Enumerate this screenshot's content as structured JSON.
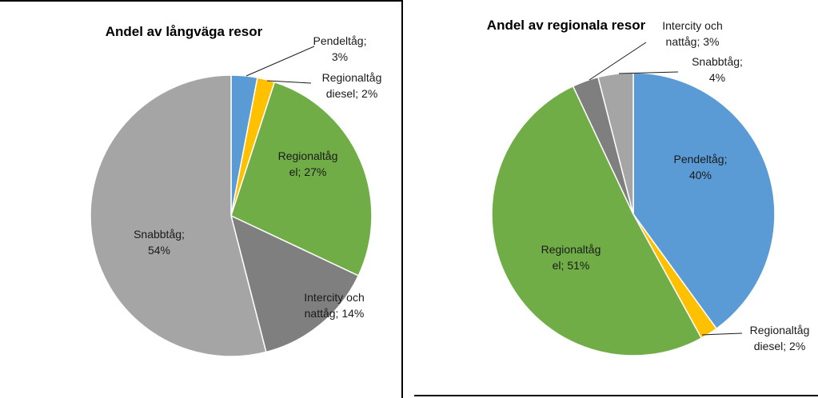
{
  "chart_data": [
    {
      "type": "pie",
      "title": "Andel  av långväga resor",
      "slices": [
        {
          "name": "Pendeltåg",
          "value": 3,
          "color": "#5b9bd5",
          "label_lines": [
            "Pendeltåg;",
            "3%"
          ]
        },
        {
          "name": "Regionaltåg diesel",
          "value": 2,
          "color": "#ffc000",
          "label_lines": [
            "Regionaltåg",
            "diesel; 2%"
          ]
        },
        {
          "name": "Regionaltåg el",
          "value": 27,
          "color": "#70ad47",
          "label_lines": [
            "Regionaltåg",
            "el; 27%"
          ]
        },
        {
          "name": "Intercity och nattåg",
          "value": 14,
          "color": "#7f7f7f",
          "label_lines": [
            "Intercity och",
            "nattåg; 14%"
          ]
        },
        {
          "name": "Snabbtåg",
          "value": 54,
          "color": "#a5a5a5",
          "label_lines": [
            "Snabbtåg;",
            "54%"
          ]
        }
      ]
    },
    {
      "type": "pie",
      "title": "Andel  av regionala resor",
      "slices": [
        {
          "name": "Pendeltåg",
          "value": 40,
          "color": "#5b9bd5",
          "label_lines": [
            "Pendeltåg;",
            "40%"
          ]
        },
        {
          "name": "Regionaltåg diesel",
          "value": 2,
          "color": "#ffc000",
          "label_lines": [
            "Regionaltåg",
            "diesel; 2%"
          ]
        },
        {
          "name": "Regionaltåg el",
          "value": 51,
          "color": "#70ad47",
          "label_lines": [
            "Regionaltåg",
            "el; 51%"
          ]
        },
        {
          "name": "Intercity och nattåg",
          "value": 3,
          "color": "#7f7f7f",
          "label_lines": [
            "Intercity och",
            "nattåg; 3%"
          ]
        },
        {
          "name": "Snabbtåg",
          "value": 4,
          "color": "#a5a5a5",
          "label_lines": [
            "Snabbtåg;",
            "4%"
          ]
        }
      ]
    }
  ]
}
